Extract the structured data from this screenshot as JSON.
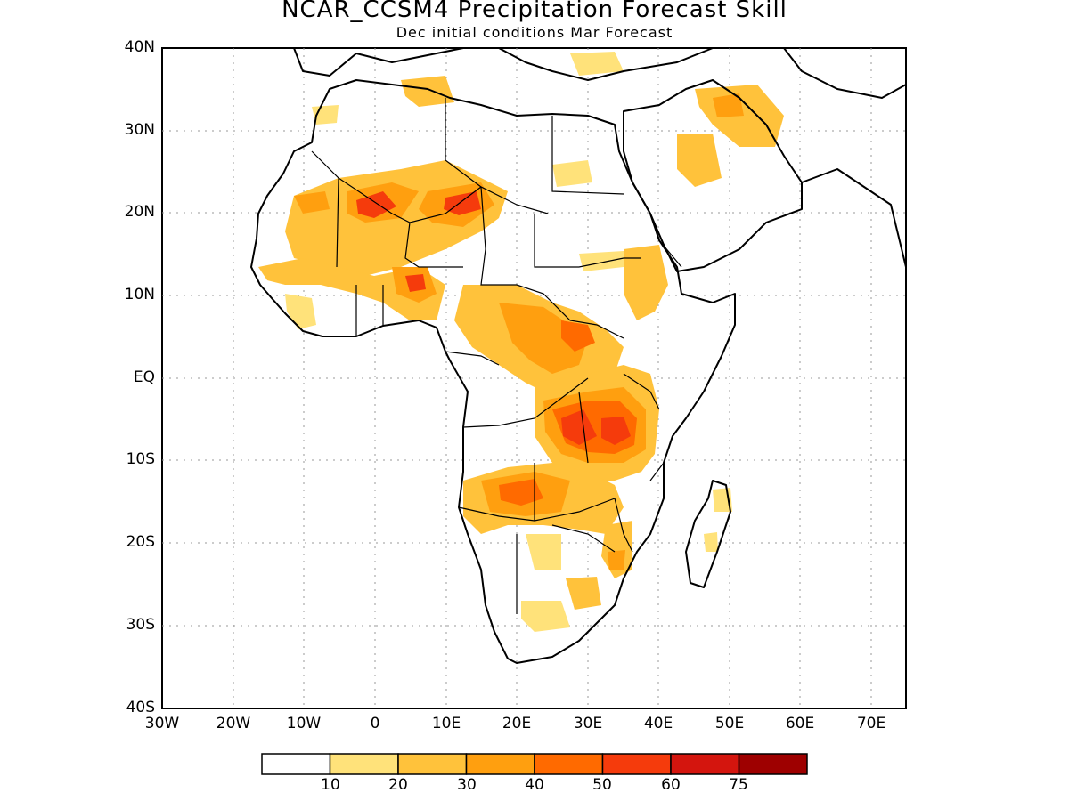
{
  "title": "NCAR_CCSM4 Precipitation Forecast Skill",
  "subtitle": "Dec initial conditions  Mar Forecast",
  "map": {
    "lat_labels": [
      "40N",
      "30N",
      "20N",
      "10N",
      "EQ",
      "10S",
      "20S",
      "30S",
      "40S"
    ],
    "lon_labels": [
      "30W",
      "20W",
      "10W",
      "0",
      "10E",
      "20E",
      "30E",
      "40E",
      "50E",
      "60E",
      "70E"
    ],
    "lon_range": [
      -30,
      75
    ],
    "lat_range": [
      -40,
      40
    ],
    "gridlines": "dotted"
  },
  "colorbar": {
    "colors": [
      "#ffffff",
      "#ffe27a",
      "#ffc23b",
      "#ff9f0f",
      "#ff6a00",
      "#f53b0c",
      "#d4150e",
      "#9e0000"
    ],
    "labels": [
      "10",
      "20",
      "30",
      "40",
      "50",
      "60",
      "75"
    ]
  }
}
